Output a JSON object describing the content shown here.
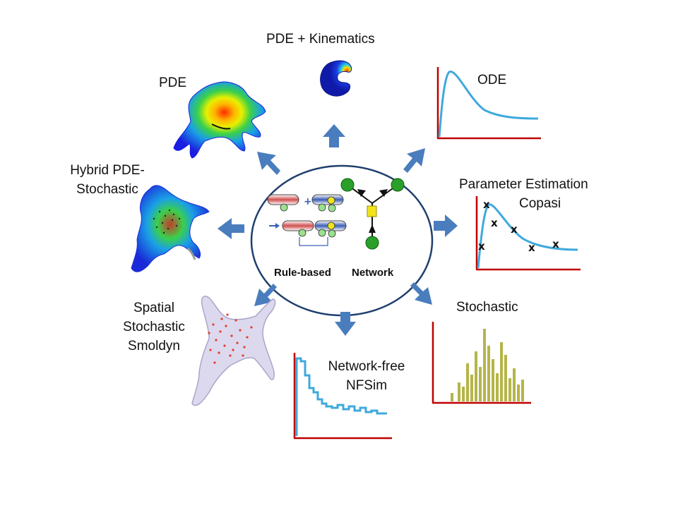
{
  "center": {
    "rule_based_label": "Rule-based",
    "network_label": "Network"
  },
  "methods": {
    "pde_kinematics": "PDE + Kinematics",
    "pde": "PDE",
    "ode": "ODE",
    "hybrid_line1": "Hybrid PDE-",
    "hybrid_line2": "Stochastic",
    "param_line1": "Parameter Estimation",
    "param_line2": "Copasi",
    "spatial_line1": "Spatial",
    "spatial_line2": "Stochastic",
    "spatial_line3": "Smoldyn",
    "stochastic": "Stochastic",
    "nf_line1": "Network-free",
    "nf_line2": "NFSim"
  },
  "markers": {
    "x_mark": "x"
  },
  "colors": {
    "arrow": "#4a7dbd",
    "axis": "#c00000",
    "curve": "#3fa9dc",
    "histogram": "#b5b54a",
    "ellipse_stroke": "#1f3f6e",
    "node_green": "#2aa02a",
    "node_yellow": "#f2e41a"
  },
  "icons": [
    "arrow-icon",
    "cell-heatmap-icon",
    "crescent-cell-icon",
    "network-node-icon"
  ]
}
